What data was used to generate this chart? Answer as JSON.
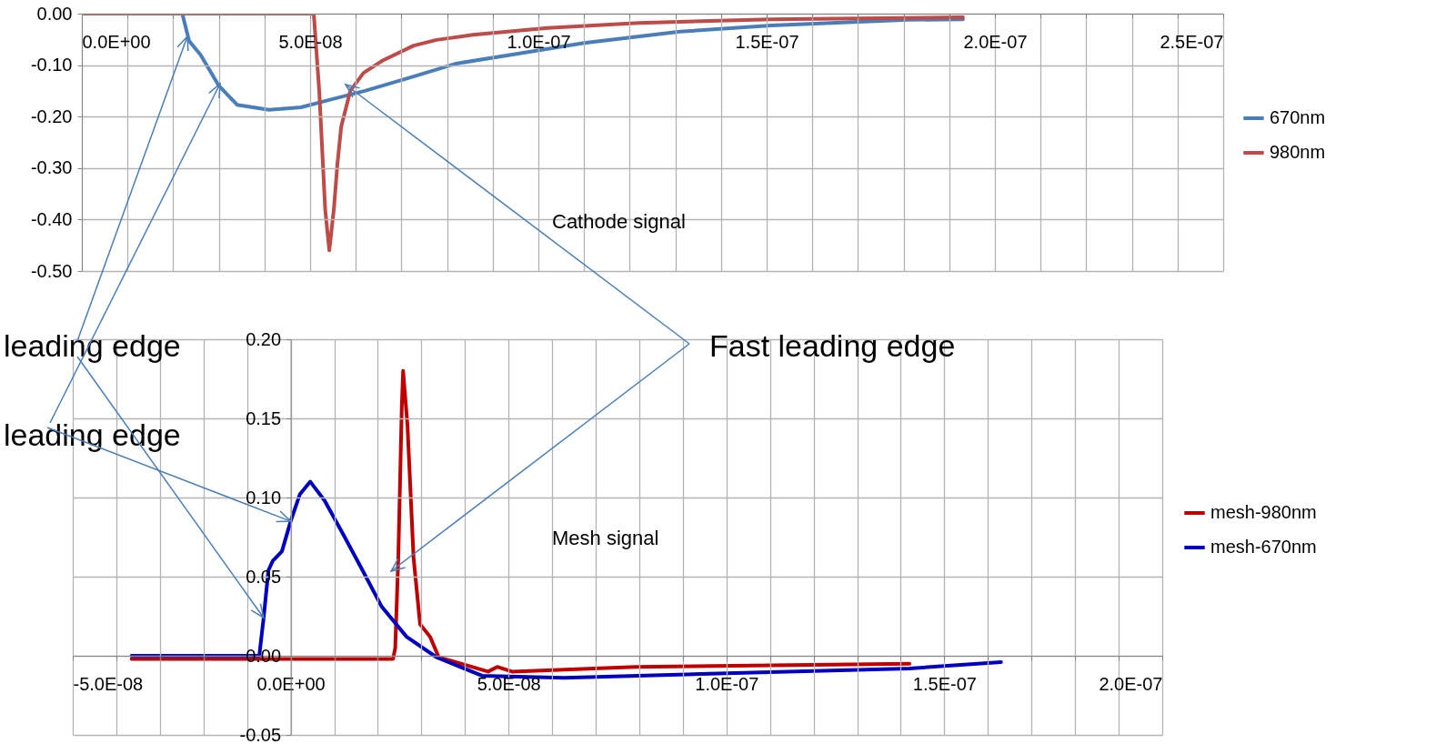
{
  "chart_data": [
    {
      "type": "line",
      "xlim": [
        0,
        2.5e-07
      ],
      "ylim": [
        -0.5,
        0
      ],
      "xticks": [
        {
          "value": 0,
          "label": "0.0E+00"
        },
        {
          "value": 1e-08,
          "label": null
        },
        {
          "value": 2e-08,
          "label": null
        },
        {
          "value": 3e-08,
          "label": null
        },
        {
          "value": 4e-08,
          "label": null
        },
        {
          "value": 5e-08,
          "label": "5.0E-08"
        },
        {
          "value": 6e-08,
          "label": null
        },
        {
          "value": 7e-08,
          "label": null
        },
        {
          "value": 8e-08,
          "label": null
        },
        {
          "value": 9e-08,
          "label": null
        },
        {
          "value": 1e-07,
          "label": "1.0E-07"
        },
        {
          "value": 1.1e-07,
          "label": null
        },
        {
          "value": 1.2e-07,
          "label": null
        },
        {
          "value": 1.3e-07,
          "label": null
        },
        {
          "value": 1.4e-07,
          "label": null
        },
        {
          "value": 1.5e-07,
          "label": "1.5E-07"
        },
        {
          "value": 1.6e-07,
          "label": null
        },
        {
          "value": 1.7e-07,
          "label": null
        },
        {
          "value": 1.8e-07,
          "label": null
        },
        {
          "value": 1.9e-07,
          "label": null
        },
        {
          "value": 2e-07,
          "label": "2.0E-07"
        },
        {
          "value": 2.1e-07,
          "label": null
        },
        {
          "value": 2.2e-07,
          "label": null
        },
        {
          "value": 2.3e-07,
          "label": null
        },
        {
          "value": 2.4e-07,
          "label": null
        },
        {
          "value": 2.5e-07,
          "label": "2.5E-07"
        }
      ],
      "yticks": [
        {
          "value": -0.5,
          "label": "-0.50"
        },
        {
          "value": -0.4,
          "label": "-0.40"
        },
        {
          "value": -0.3,
          "label": "-0.30"
        },
        {
          "value": -0.2,
          "label": "-0.20"
        },
        {
          "value": -0.1,
          "label": "-0.10"
        },
        {
          "value": 0,
          "label": "0.00"
        }
      ],
      "grid": true,
      "legend": "right",
      "annotations": [
        "Cathode signal"
      ],
      "series": [
        {
          "name": "670nm",
          "color": "#4a7ebb",
          "x": [
            0,
            2.2e-08,
            2.35e-08,
            2.6e-08,
            3e-08,
            3.4e-08,
            4.1e-08,
            4.8e-08,
            5.4e-08,
            6.2e-08,
            7.2e-08,
            8.2e-08,
            9.4e-08,
            1.1e-07,
            1.31e-07,
            1.51e-07,
            1.81e-07,
            1.93e-07
          ],
          "values": [
            0,
            0,
            -0.053,
            -0.08,
            -0.14,
            -0.177,
            -0.187,
            -0.182,
            -0.168,
            -0.15,
            -0.124,
            -0.097,
            -0.08,
            -0.057,
            -0.035,
            -0.023,
            -0.012,
            -0.011
          ]
        },
        {
          "name": "980nm",
          "color": "#be4b48",
          "x": [
            0,
            5.08e-08,
            5.2e-08,
            5.33e-08,
            5.42e-08,
            5.52e-08,
            5.6e-08,
            5.68e-08,
            5.88e-08,
            6.17e-08,
            6.57e-08,
            7.27e-08,
            7.77e-08,
            8.57e-08,
            1.02e-07,
            1.22e-07,
            1.51e-07,
            1.93e-07
          ],
          "values": [
            0,
            0,
            -0.15,
            -0.38,
            -0.46,
            -0.38,
            -0.29,
            -0.22,
            -0.15,
            -0.115,
            -0.092,
            -0.062,
            -0.051,
            -0.041,
            -0.028,
            -0.018,
            -0.011,
            -0.007
          ]
        }
      ]
    },
    {
      "type": "line",
      "xlim": [
        -5e-08,
        2e-07
      ],
      "ylim": [
        -0.05,
        0.2
      ],
      "xticks": [
        {
          "value": -5e-08,
          "label": "-5.0E-08"
        },
        {
          "value": -4e-08,
          "label": null
        },
        {
          "value": -3e-08,
          "label": null
        },
        {
          "value": -2e-08,
          "label": null
        },
        {
          "value": -1e-08,
          "label": null
        },
        {
          "value": 0,
          "label": "0.0E+00"
        },
        {
          "value": 1e-08,
          "label": null
        },
        {
          "value": 2e-08,
          "label": null
        },
        {
          "value": 3e-08,
          "label": null
        },
        {
          "value": 4e-08,
          "label": null
        },
        {
          "value": 5e-08,
          "label": "5.0E-08"
        },
        {
          "value": 6e-08,
          "label": null
        },
        {
          "value": 7e-08,
          "label": null
        },
        {
          "value": 8e-08,
          "label": null
        },
        {
          "value": 9e-08,
          "label": null
        },
        {
          "value": 1e-07,
          "label": "1.0E-07"
        },
        {
          "value": 1.1e-07,
          "label": null
        },
        {
          "value": 1.2e-07,
          "label": null
        },
        {
          "value": 1.3e-07,
          "label": null
        },
        {
          "value": 1.4e-07,
          "label": null
        },
        {
          "value": 1.5e-07,
          "label": "1.5E-07"
        },
        {
          "value": 1.6e-07,
          "label": null
        },
        {
          "value": 1.7e-07,
          "label": null
        },
        {
          "value": 1.8e-07,
          "label": null
        },
        {
          "value": 1.9e-07,
          "label": null
        },
        {
          "value": 2e-07,
          "label": "2.0E-07"
        }
      ],
      "yticks": [
        {
          "value": -0.05,
          "label": "-0.05"
        },
        {
          "value": 0,
          "label": "0.00"
        },
        {
          "value": 0.05,
          "label": "0.05"
        },
        {
          "value": 0.1,
          "label": "0.10"
        },
        {
          "value": 0.15,
          "label": "0.15"
        },
        {
          "value": 0.2,
          "label": "0.20"
        }
      ],
      "grid": true,
      "legend": "right",
      "annotations": [
        "Mesh signal",
        "Fast leading edge",
        {
          "text": "leading edge",
          "x": -6.2e-09,
          "y": 0.024
        },
        {
          "text": "leading edge",
          "x": 0,
          "y": 0.085
        }
      ],
      "series": [
        {
          "name": "mesh-980nm",
          "color": "#c00000",
          "x": [
            -3.65e-08,
            2.35e-08,
            2.4e-08,
            2.47e-08,
            2.55e-08,
            2.58e-08,
            2.68e-08,
            2.82e-08,
            2.97e-08,
            3.2e-08,
            3.4e-08,
            4.03e-08,
            4.53e-08,
            4.74e-08,
            5.08e-08,
            7.9e-08,
            1.42e-07
          ],
          "values": [
            -0.002,
            -0.002,
            0.005,
            0.062,
            0.157,
            0.18,
            0.146,
            0.062,
            0.02,
            0.012,
            -0.001,
            -0.006,
            -0.01,
            -0.007,
            -0.01,
            -0.007,
            -0.005
          ]
        },
        {
          "name": "mesh-670nm",
          "color": "#0000c0",
          "x": [
            -3.65e-08,
            -7.2e-09,
            -6.2e-09,
            -5.1e-09,
            -4.1e-09,
            -2e-09,
            0,
            2.1e-09,
            4.5e-09,
            7.8e-09,
            1.2e-08,
            1.61e-08,
            2.09e-08,
            2.66e-08,
            3.35e-08,
            4.39e-08,
            6.27e-08,
            1e-07,
            1.42e-07,
            1.63e-07
          ],
          "values": [
            0,
            0,
            0.024,
            0.054,
            0.06,
            0.066,
            0.085,
            0.102,
            0.11,
            0.098,
            0.077,
            0.056,
            0.031,
            0.012,
            -0.001,
            -0.0126,
            -0.014,
            -0.011,
            -0.008,
            -0.004
          ]
        }
      ]
    }
  ]
}
